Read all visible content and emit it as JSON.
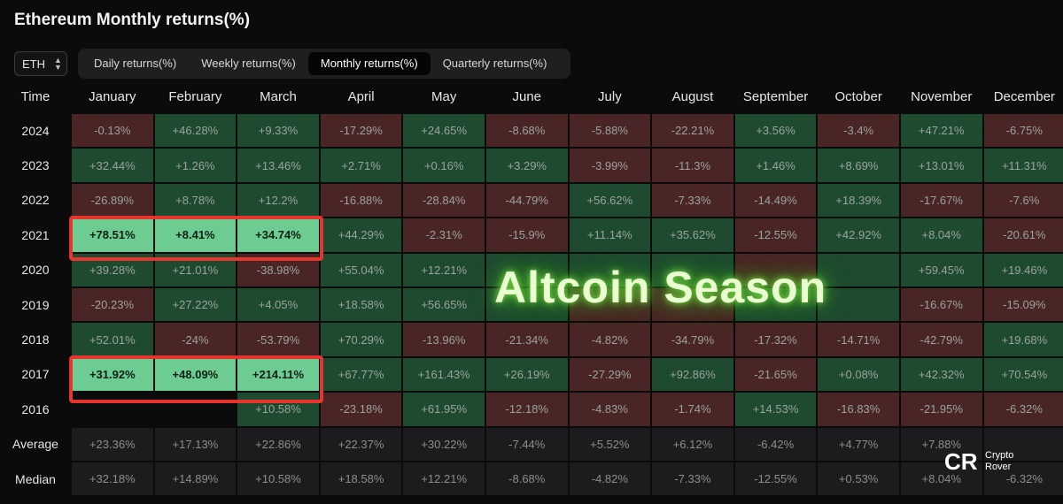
{
  "title": "Ethereum Monthly returns(%)",
  "asset_select": {
    "value": "ETH",
    "icon": "chevron-updown-icon"
  },
  "tabs": [
    {
      "label": "Daily returns(%)",
      "active": false
    },
    {
      "label": "Weekly returns(%)",
      "active": false
    },
    {
      "label": "Monthly returns(%)",
      "active": true
    },
    {
      "label": "Quarterly returns(%)",
      "active": false
    }
  ],
  "table": {
    "corner_label": "Time",
    "months": [
      "January",
      "February",
      "March",
      "April",
      "May",
      "June",
      "July",
      "August",
      "September",
      "October",
      "November",
      "December"
    ],
    "rows": [
      {
        "label": "2024",
        "cells": [
          "-0.13%",
          "+46.28%",
          "+9.33%",
          "-17.29%",
          "+24.65%",
          "-8.68%",
          "-5.88%",
          "-22.21%",
          "+3.56%",
          "-3.4%",
          "+47.21%",
          "-6.75%"
        ]
      },
      {
        "label": "2023",
        "cells": [
          "+32.44%",
          "+1.26%",
          "+13.46%",
          "+2.71%",
          "+0.16%",
          "+3.29%",
          "-3.99%",
          "-11.3%",
          "+1.46%",
          "+8.69%",
          "+13.01%",
          "+11.31%"
        ]
      },
      {
        "label": "2022",
        "cells": [
          "-26.89%",
          "+8.78%",
          "+12.2%",
          "-16.88%",
          "-28.84%",
          "-44.79%",
          "+56.62%",
          "-7.33%",
          "-14.49%",
          "+18.39%",
          "-17.67%",
          "-7.6%"
        ]
      },
      {
        "label": "2021",
        "cells": [
          "+78.51%",
          "+8.41%",
          "+34.74%",
          "+44.29%",
          "-2.31%",
          "-15.9%",
          "+11.14%",
          "+35.62%",
          "-12.55%",
          "+42.92%",
          "+8.04%",
          "-20.61%"
        ]
      },
      {
        "label": "2020",
        "cells": [
          "+39.28%",
          "+21.01%",
          "-38.98%",
          "+55.04%",
          "+12.21%",
          "",
          "",
          "",
          "",
          "",
          "+59.45%",
          "+19.46%"
        ]
      },
      {
        "label": "2019",
        "cells": [
          "-20.23%",
          "+27.22%",
          "+4.05%",
          "+18.58%",
          "+56.65%",
          "",
          "",
          "",
          "",
          "",
          "-16.67%",
          "-15.09%"
        ]
      },
      {
        "label": "2018",
        "cells": [
          "+52.01%",
          "-24%",
          "-53.79%",
          "+70.29%",
          "-13.96%",
          "-21.34%",
          "-4.82%",
          "-34.79%",
          "-17.32%",
          "-14.71%",
          "-42.79%",
          "+19.68%"
        ]
      },
      {
        "label": "2017",
        "cells": [
          "+31.92%",
          "+48.09%",
          "+214.11%",
          "+67.77%",
          "+161.43%",
          "+26.19%",
          "-27.29%",
          "+92.86%",
          "-21.65%",
          "+0.08%",
          "+42.32%",
          "+70.54%"
        ]
      },
      {
        "label": "2016",
        "cells": [
          "",
          "",
          "+10.58%",
          "-23.18%",
          "+61.95%",
          "-12.18%",
          "-4.83%",
          "-1.74%",
          "+14.53%",
          "-16.83%",
          "-21.95%",
          "-6.32%"
        ]
      }
    ],
    "stats": [
      {
        "label": "Average",
        "cells": [
          "+23.36%",
          "+17.13%",
          "+22.86%",
          "+22.37%",
          "+30.22%",
          "-7.44%",
          "+5.52%",
          "+6.12%",
          "-6.42%",
          "+4.77%",
          "+7.88%",
          ""
        ]
      },
      {
        "label": "Median",
        "cells": [
          "+32.18%",
          "+14.89%",
          "+10.58%",
          "+18.58%",
          "+12.21%",
          "-8.68%",
          "-4.82%",
          "-7.33%",
          "-12.55%",
          "+0.53%",
          "+8.04%",
          "-6.32%"
        ]
      }
    ],
    "cell_signs": {
      "2020": [
        "pos",
        "pos",
        "neg",
        "pos",
        "pos",
        "pos",
        "pos",
        "pos",
        "neg",
        "pos",
        "pos",
        "pos"
      ],
      "2019": [
        "neg",
        "pos",
        "pos",
        "pos",
        "pos",
        "pos",
        "neg",
        "neg",
        "pos",
        "pos",
        "neg",
        "neg"
      ]
    },
    "highlighted_rows": [
      "2021",
      "2017"
    ],
    "highlighted_months": [
      "January",
      "February",
      "March"
    ]
  },
  "overlay_text": "Altcoin Season",
  "watermark": {
    "logo": "CR",
    "line1": "Crypto",
    "line2": "Rover"
  },
  "colors": {
    "positive": "#1e4a30",
    "negative": "#4a2525",
    "highlight": "#6dcc92",
    "highlight_border": "#e5352d",
    "glow": "#7fe04a"
  }
}
